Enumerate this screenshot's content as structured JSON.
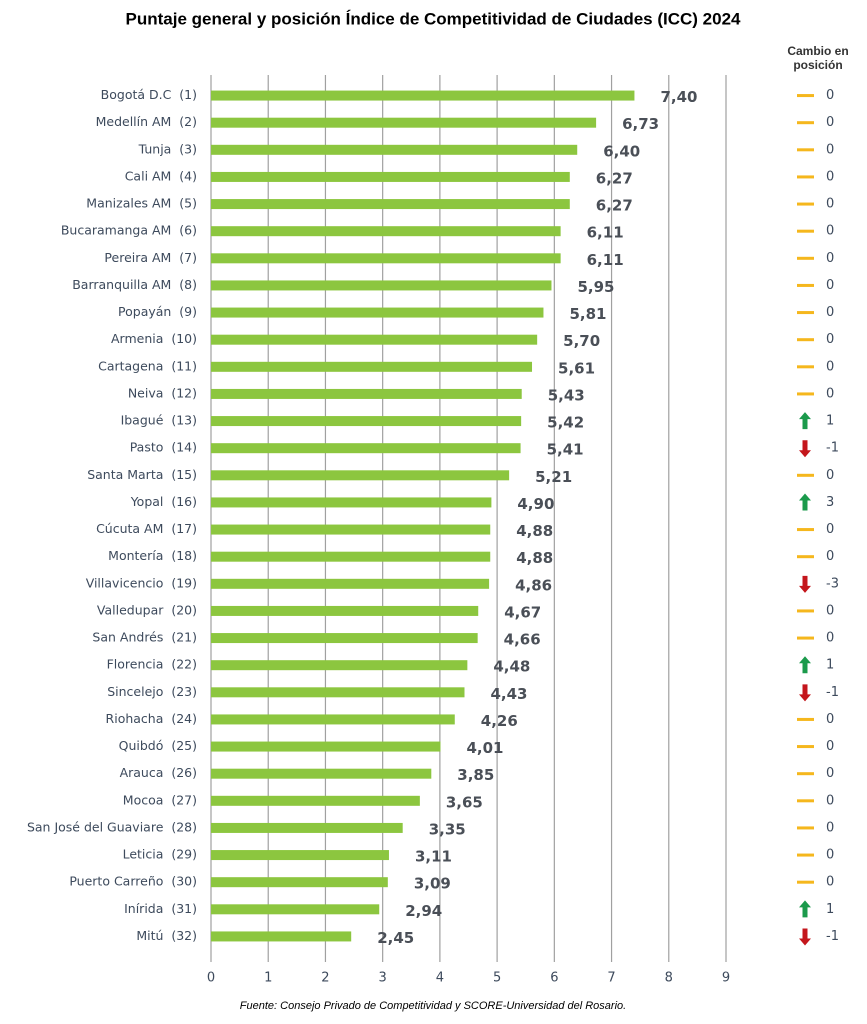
{
  "chart_data": {
    "type": "bar",
    "orientation": "horizontal",
    "title": "Puntaje general y posición Índice de Competitividad de Ciudades (ICC) 2024",
    "categories": [
      "Bogotá D.C  (1)",
      "Medellín AM  (2)",
      "Tunja  (3)",
      "Cali AM  (4)",
      "Manizales AM  (5)",
      "Bucaramanga AM  (6)",
      "Pereira AM  (7)",
      "Barranquilla AM  (8)",
      "Popayán  (9)",
      "Armenia  (10)",
      "Cartagena  (11)",
      "Neiva  (12)",
      "Ibagué  (13)",
      "Pasto  (14)",
      "Santa Marta  (15)",
      "Yopal  (16)",
      "Cúcuta AM  (17)",
      "Montería  (18)",
      "Villavicencio  (19)",
      "Valledupar  (20)",
      "San Andrés  (21)",
      "Florencia  (22)",
      "Sincelejo  (23)",
      "Riohacha  (24)",
      "Quibdó  (25)",
      "Arauca  (26)",
      "Mocoa  (27)",
      "San José del Guaviare  (28)",
      "Leticia  (29)",
      "Puerto Carreño  (30)",
      "Inírida  (31)",
      "Mitú  (32)"
    ],
    "values": [
      7.4,
      6.73,
      6.4,
      6.27,
      6.27,
      6.11,
      6.11,
      5.95,
      5.81,
      5.7,
      5.61,
      5.43,
      5.42,
      5.41,
      5.21,
      4.9,
      4.88,
      4.88,
      4.86,
      4.67,
      4.66,
      4.48,
      4.43,
      4.26,
      4.01,
      3.85,
      3.65,
      3.35,
      3.11,
      3.09,
      2.94,
      2.45
    ],
    "value_labels": [
      "7,40",
      "6,73",
      "6,40",
      "6,27",
      "6,27",
      "6,11",
      "6,11",
      "5,95",
      "5,81",
      "5,70",
      "5,61",
      "5,43",
      "5,42",
      "5,41",
      "5,21",
      "4,90",
      "4,88",
      "4,88",
      "4,86",
      "4,67",
      "4,66",
      "4,48",
      "4,43",
      "4,26",
      "4,01",
      "3,85",
      "3,65",
      "3,35",
      "3,11",
      "3,09",
      "2,94",
      "2,45"
    ],
    "color": "#8cc63f",
    "xlim": [
      0,
      9
    ],
    "xticks": [
      0,
      1,
      2,
      3,
      4,
      5,
      6,
      7,
      8,
      9
    ],
    "grid": true,
    "change_title": "Cambio en posición",
    "change": [
      0,
      0,
      0,
      0,
      0,
      0,
      0,
      0,
      0,
      0,
      0,
      0,
      1,
      -1,
      0,
      3,
      0,
      0,
      -3,
      0,
      0,
      1,
      -1,
      0,
      0,
      0,
      0,
      0,
      0,
      0,
      1,
      -1
    ],
    "source": "Fuente: Consejo Privado de Competitividad y SCORE-Universidad del Rosario."
  }
}
